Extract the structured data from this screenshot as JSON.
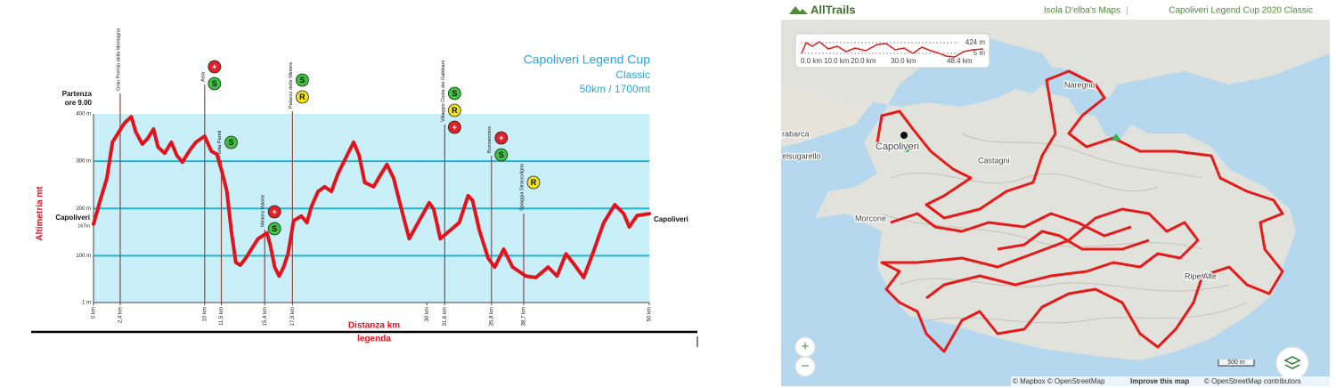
{
  "chart_data": {
    "type": "line",
    "title": "Capoliveri Legend Cup",
    "subtitle": "Classic",
    "distance_note": "50km / 1700mt",
    "start_label": [
      "Partenza",
      "ore 9.00"
    ],
    "start_place": "Capoliveri",
    "start_elevation_label": "167m",
    "finish_place": "Capoliveri",
    "x_label": "Distanza km",
    "y_label": "Altimetria mt",
    "legend_label": "legenda",
    "color": "#e3131b",
    "grid": true,
    "grid_color": "#22b5d3",
    "plot_background": "#c9eff9",
    "x": [
      0,
      0.6,
      1.2,
      1.7,
      2.2,
      2.8,
      3.4,
      3.8,
      4.4,
      4.9,
      5.4,
      5.8,
      6.4,
      7.0,
      7.5,
      8.0,
      8.6,
      9.2,
      10.0,
      10.6,
      11.1,
      11.6,
      12.0,
      12.4,
      12.8,
      13.2,
      13.7,
      14.2,
      14.8,
      15.6,
      15.9,
      16.3,
      16.7,
      17.1,
      17.5,
      18.0,
      18.7,
      19.2,
      19.6,
      20.2,
      20.8,
      21.4,
      22.0,
      22.8,
      23.4,
      23.9,
      24.4,
      25.2,
      25.9,
      26.4,
      27.0,
      27.6,
      28.4,
      29.2,
      30.2,
      30.6,
      31.2,
      32.0,
      32.9,
      33.7,
      34.1,
      34.7,
      35.5,
      36.1,
      36.9,
      37.7,
      38.9,
      39.8,
      40.9,
      41.7,
      42.5,
      43.3,
      44.1,
      44.9,
      45.9,
      46.9,
      47.7,
      48.2,
      48.9,
      50.0
    ],
    "values": [
      167,
      217,
      264,
      340,
      359,
      381,
      394,
      362,
      336,
      349,
      368,
      330,
      317,
      340,
      312,
      298,
      321,
      340,
      353,
      321,
      315,
      274,
      236,
      152,
      86,
      80,
      95,
      114,
      136,
      148,
      123,
      76,
      57,
      76,
      104,
      174,
      184,
      170,
      204,
      236,
      246,
      236,
      274,
      312,
      340,
      312,
      255,
      246,
      274,
      293,
      264,
      208,
      136,
      170,
      212,
      199,
      136,
      152,
      170,
      227,
      217,
      155,
      95,
      76,
      114,
      76,
      57,
      54,
      76,
      57,
      104,
      80,
      54,
      104,
      170,
      208,
      189,
      161,
      185,
      189
    ],
    "xlim": [
      0,
      50
    ],
    "xticks": [
      {
        "value": 0,
        "label": "0 km"
      },
      {
        "value": 2.4,
        "label": "2,4 km"
      },
      {
        "value": 10,
        "label": "10 km"
      },
      {
        "value": 11.5,
        "label": "11,5 km"
      },
      {
        "value": 15.4,
        "label": "15,4 km"
      },
      {
        "value": 17.9,
        "label": "17,9 km"
      },
      {
        "value": 30,
        "label": "30 km"
      },
      {
        "value": 31.6,
        "label": "31,6 km"
      },
      {
        "value": 35.8,
        "label": "35,8 km"
      },
      {
        "value": 38.7,
        "label": "38,7 km"
      },
      {
        "value": 50,
        "label": "50 km"
      }
    ],
    "ylim": [
      1,
      400
    ],
    "yticks": [
      {
        "value": 1,
        "label": "1 m"
      },
      {
        "value": 100,
        "label": "100 m"
      },
      {
        "value": 200,
        "label": "200 m"
      },
      {
        "value": 300,
        "label": "300 m"
      },
      {
        "value": 400,
        "label": "400 m"
      }
    ],
    "annotations": [
      {
        "x": 2.4,
        "label": "Gran Premio della Montagna"
      },
      {
        "x": 10,
        "label": "Asta",
        "icons": [
          {
            "symbol": "+",
            "color": "#e3202a"
          },
          {
            "symbol": "S",
            "color": "#3cc43c"
          }
        ]
      },
      {
        "x": 11.5,
        "label": "Punta Pareti",
        "icons": [
          {
            "symbol": "S",
            "color": "#3cc43c"
          }
        ]
      },
      {
        "x": 15.4,
        "label": "Miniera Valone",
        "icons": [
          {
            "symbol": "+",
            "color": "#e3202a"
          },
          {
            "symbol": "S",
            "color": "#3cc43c"
          }
        ]
      },
      {
        "x": 17.9,
        "label": "Palazzo delle Miniere",
        "icons": [
          {
            "symbol": "S",
            "color": "#3cc43c"
          },
          {
            "symbol": "R",
            "color": "#f4e614"
          }
        ]
      },
      {
        "x": 31.6,
        "label": "Villaggio Costa dei Gabbiani",
        "icons": [
          {
            "symbol": "S",
            "color": "#3cc43c"
          },
          {
            "symbol": "R",
            "color": "#f4e614"
          },
          {
            "symbol": "+",
            "color": "#e3202a"
          }
        ]
      },
      {
        "x": 35.8,
        "label": "Buzzancone",
        "icons": [
          {
            "symbol": "+",
            "color": "#e3202a"
          },
          {
            "symbol": "S",
            "color": "#3cc43c"
          }
        ]
      },
      {
        "x": 38.7,
        "label": "Spiaggia Straccoligno",
        "icons": [
          {
            "symbol": "R",
            "color": "#f4e614"
          }
        ]
      }
    ]
  },
  "map": {
    "brand": "AllTrails",
    "breadcrumbs": [
      "Isola D'elba's Maps",
      "Capoliveri Legend Cup 2020 Classic"
    ],
    "elevation_widget": {
      "max_label": "424 m",
      "min_label": "5 m",
      "x_labels": [
        "0.0 km",
        "10.0 km",
        "20.0 km",
        "30.0 km",
        "48.4 km"
      ]
    },
    "places": [
      "Naregno",
      "rabarca",
      "elsugarello",
      "Capoliveri",
      "Castagni",
      "Morcone",
      "Ripe Alte"
    ],
    "zoom_in": "+",
    "zoom_out": "−",
    "scale": "500 m",
    "attribution": [
      "© Mapbox © OpenStreetMap",
      "Improve this map",
      "© OpenStreetMap contributors"
    ]
  }
}
